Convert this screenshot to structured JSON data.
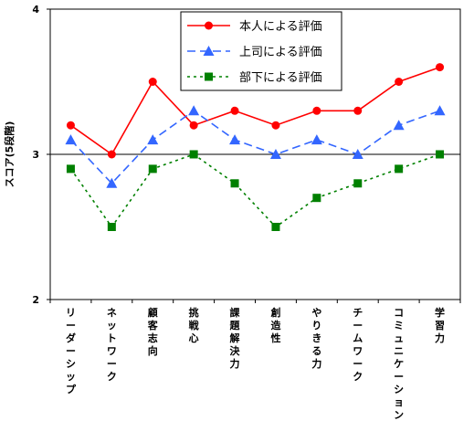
{
  "chart_data": {
    "type": "line",
    "title": "",
    "xlabel": "",
    "ylabel": "スコア(5段階)",
    "ylim": [
      2,
      4
    ],
    "yticks": [
      "2",
      "3",
      "4"
    ],
    "reference_line": 3,
    "categories": [
      "リーダーシップ",
      "ネットワーク",
      "顧客志向",
      "挑戦心",
      "課題解決力",
      "創造性",
      "やりきる力",
      "チームワーク",
      "コミュニケーション",
      "学習力"
    ],
    "legend_position": "top-center",
    "series": [
      {
        "name": "本人による評価",
        "color": "#ff0000",
        "marker": "circle",
        "dash": "solid",
        "values": [
          3.2,
          3.0,
          3.5,
          3.2,
          3.3,
          3.2,
          3.3,
          3.3,
          3.5,
          3.6
        ]
      },
      {
        "name": "上司による評価",
        "color": "#3366ff",
        "marker": "triangle",
        "dash": "dashed",
        "values": [
          3.1,
          2.8,
          3.1,
          3.3,
          3.1,
          3.0,
          3.1,
          3.0,
          3.2,
          3.3
        ]
      },
      {
        "name": "部下による評価",
        "color": "#008000",
        "marker": "square",
        "dash": "dotted",
        "values": [
          2.9,
          2.5,
          2.9,
          3.0,
          2.8,
          2.5,
          2.7,
          2.8,
          2.9,
          3.0
        ]
      }
    ]
  }
}
